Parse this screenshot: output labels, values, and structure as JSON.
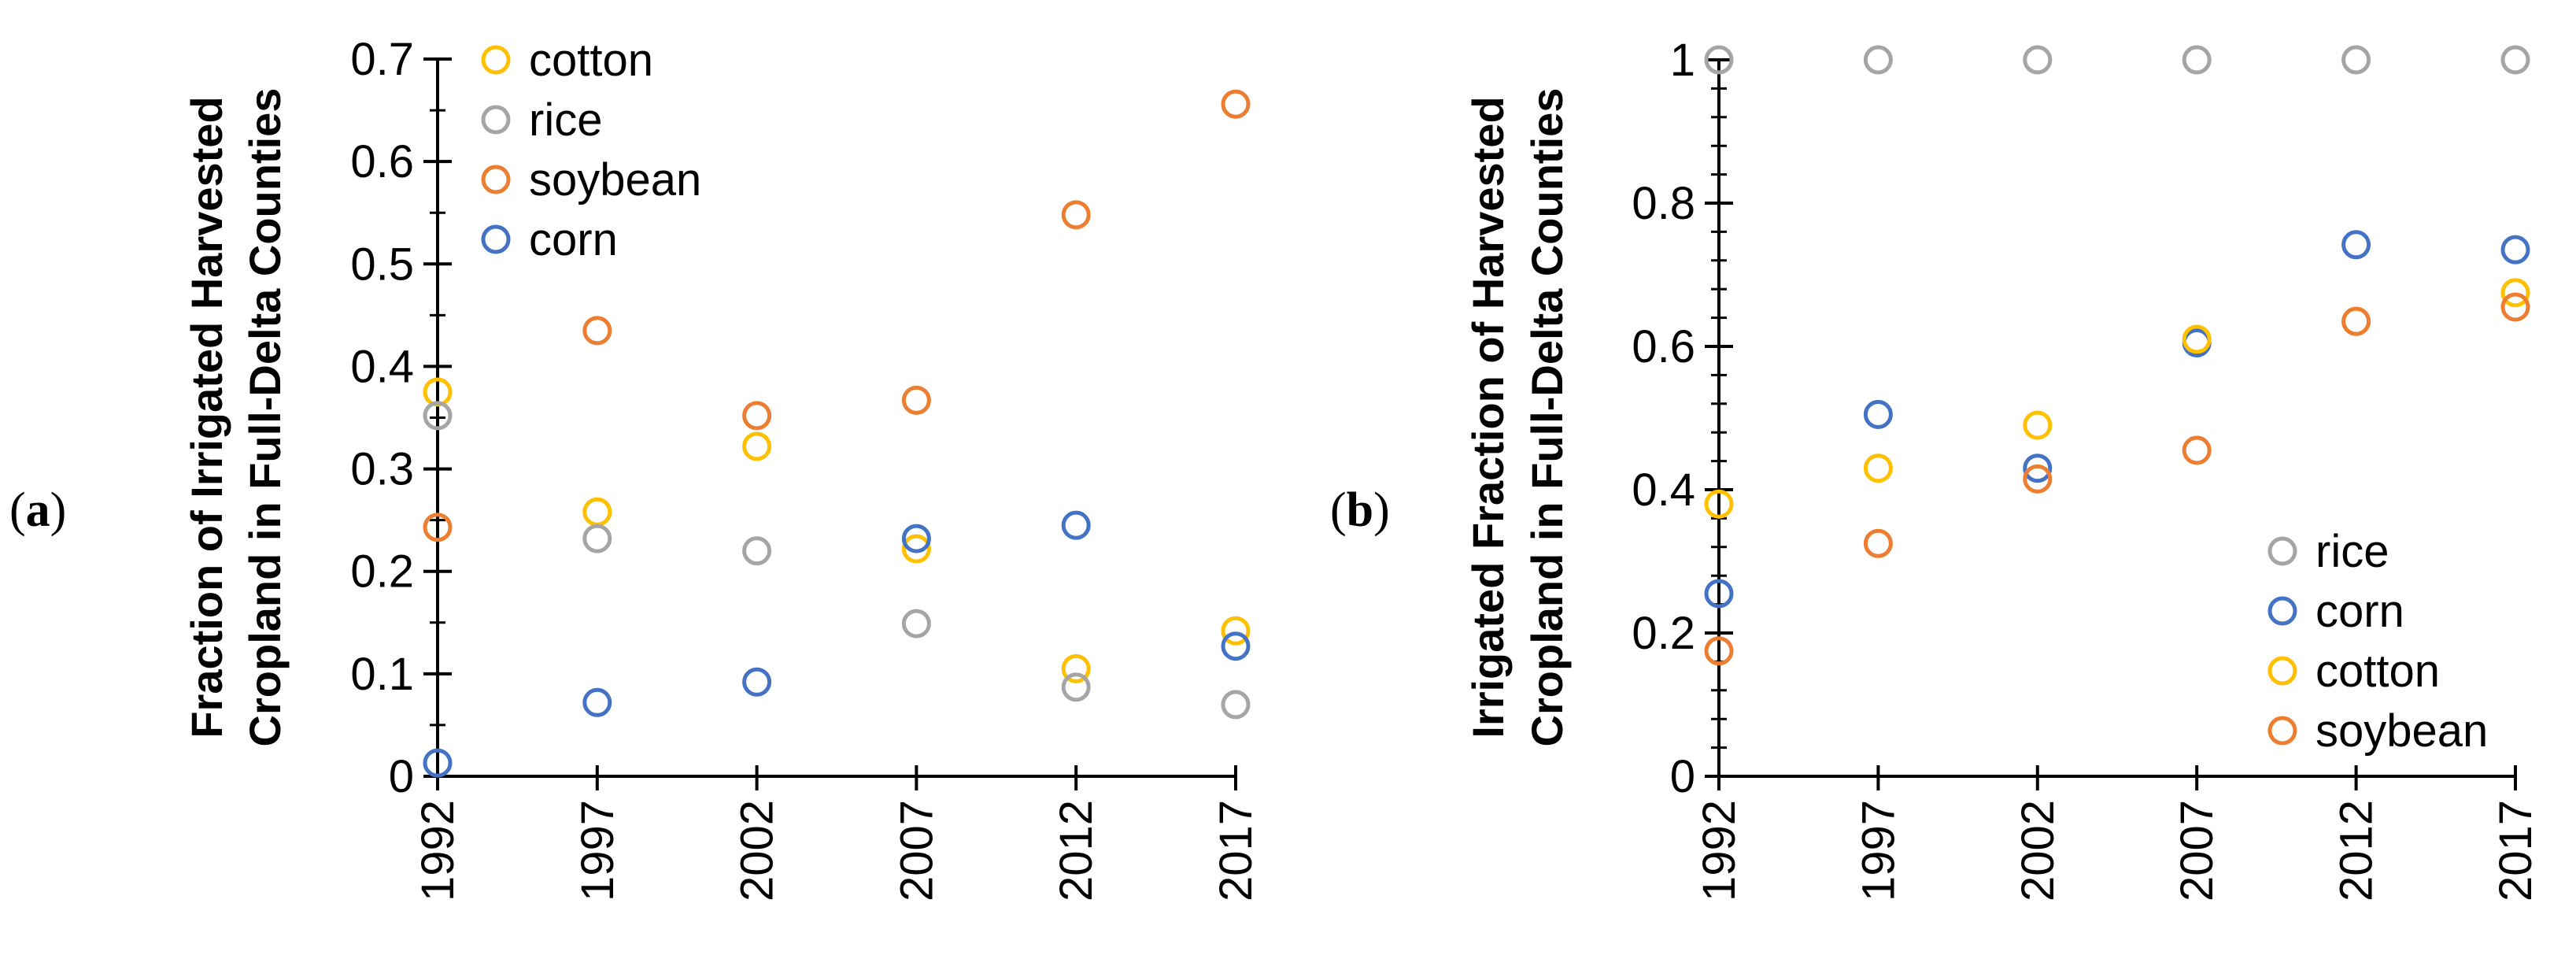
{
  "colors": {
    "cotton": "#FFC000",
    "rice": "#A5A5A5",
    "soybean": "#ED7D31",
    "corn": "#4472C4"
  },
  "chart_data": [
    {
      "panel_label": "a",
      "type": "scatter",
      "ylabel_lines": [
        "Fraction of Irrigated Harvested",
        "Cropland in Full-Delta Counties"
      ],
      "x": [
        1992,
        1997,
        2002,
        2007,
        2012,
        2017
      ],
      "x_tick_labels": [
        "1992",
        "1997",
        "2002",
        "2007",
        "2012",
        "2017"
      ],
      "ylim": [
        0,
        0.7
      ],
      "y_ticks": [
        0,
        0.1,
        0.2,
        0.3,
        0.4,
        0.5,
        0.6,
        0.7
      ],
      "y_tick_labels": [
        "0",
        "0.1",
        "0.2",
        "0.3",
        "0.4",
        "0.5",
        "0.6",
        "0.7"
      ],
      "legend_position": "top-left",
      "series": [
        {
          "name": "cotton",
          "color_key": "cotton",
          "values": [
            0.375,
            0.258,
            0.322,
            0.222,
            0.105,
            0.142
          ]
        },
        {
          "name": "rice",
          "color_key": "rice",
          "values": [
            0.352,
            0.232,
            0.22,
            0.149,
            0.087,
            0.07
          ]
        },
        {
          "name": "soybean",
          "color_key": "soybean",
          "values": [
            0.243,
            0.435,
            0.352,
            0.367,
            0.548,
            0.656
          ]
        },
        {
          "name": "corn",
          "color_key": "corn",
          "values": [
            0.013,
            0.072,
            0.092,
            0.232,
            0.245,
            0.127
          ]
        }
      ]
    },
    {
      "panel_label": "b",
      "type": "scatter",
      "ylabel_lines": [
        "Irrigated Fraction of Harvested",
        "Cropland in Full-Delta Counties"
      ],
      "x": [
        1992,
        1997,
        2002,
        2007,
        2012,
        2017
      ],
      "x_tick_labels": [
        "1992",
        "1997",
        "2002",
        "2007",
        "2012",
        "2017"
      ],
      "ylim": [
        0,
        1
      ],
      "y_ticks": [
        0,
        0.2,
        0.4,
        0.6,
        0.8,
        1
      ],
      "y_tick_labels": [
        "0",
        "0.2",
        "0.4",
        "0.6",
        "0.8",
        "1"
      ],
      "legend_position": "bottom-right",
      "series": [
        {
          "name": "rice",
          "color_key": "rice",
          "values": [
            1.0,
            1.0,
            1.0,
            1.0,
            1.0,
            1.0
          ]
        },
        {
          "name": "corn",
          "color_key": "corn",
          "values": [
            0.255,
            0.505,
            0.43,
            0.605,
            0.742,
            0.735
          ]
        },
        {
          "name": "cotton",
          "color_key": "cotton",
          "values": [
            0.38,
            0.43,
            0.49,
            0.61,
            0.635,
            0.675
          ]
        },
        {
          "name": "soybean",
          "color_key": "soybean",
          "values": [
            0.175,
            0.325,
            0.415,
            0.455,
            0.635,
            0.655
          ]
        }
      ]
    }
  ]
}
